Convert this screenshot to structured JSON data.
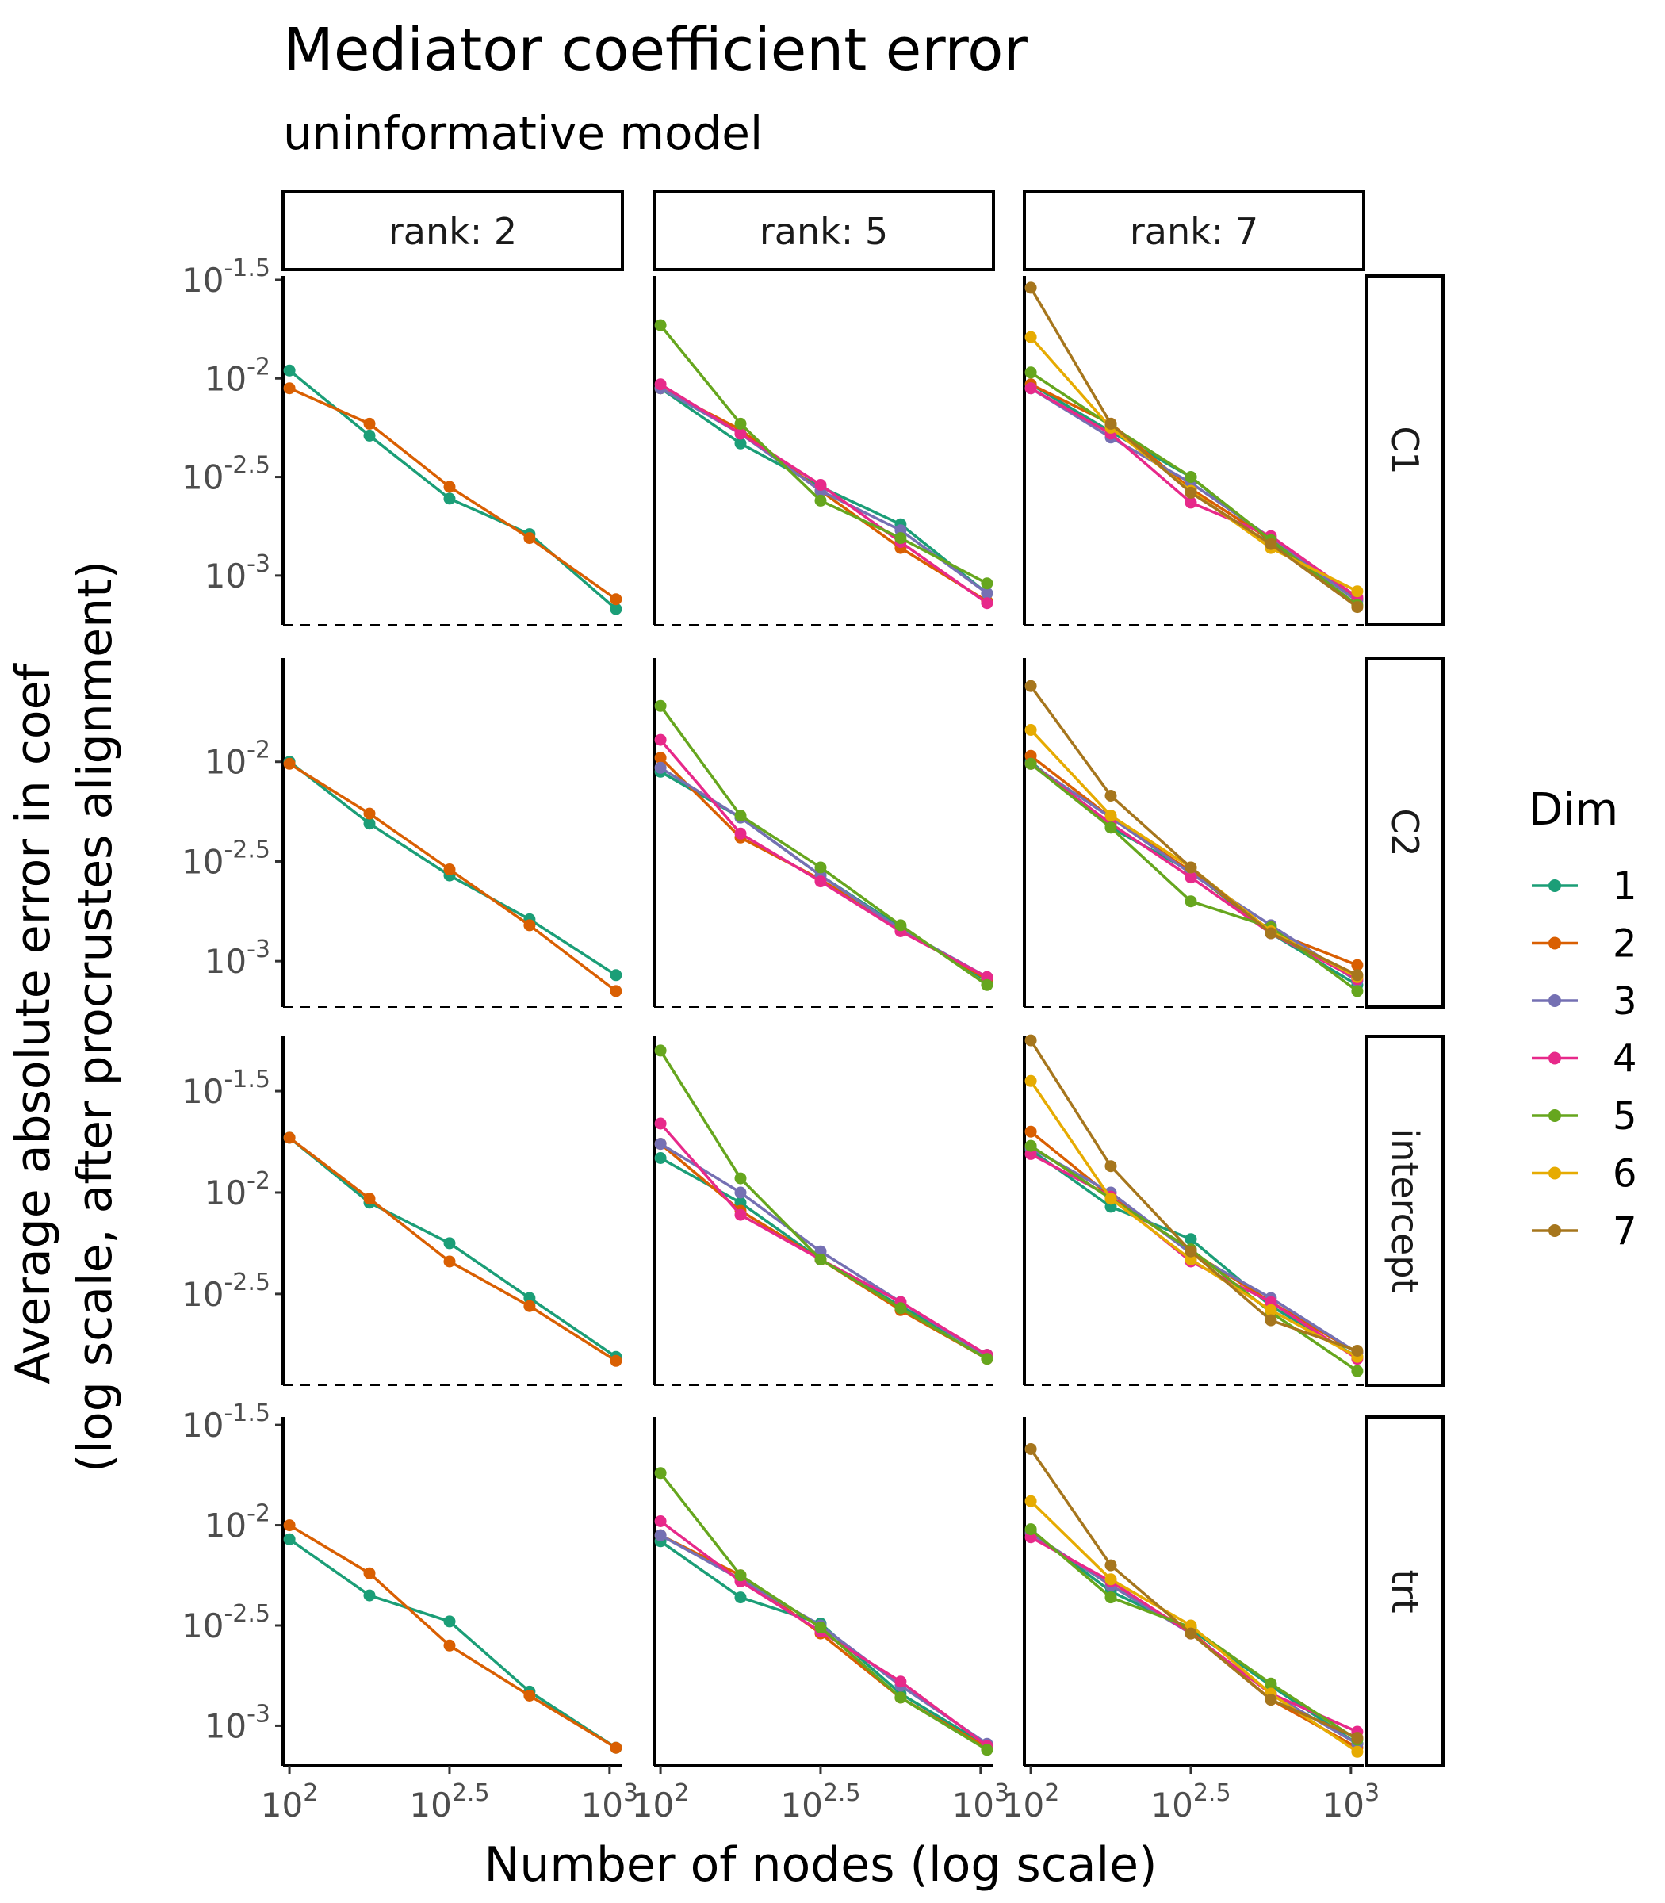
{
  "title": "Mediator coefficient error",
  "subtitle": "uninformative model",
  "xlabel": "Number of nodes (log scale)",
  "ylabel_line1": "Average absolute error in coef",
  "ylabel_line2": "(log scale, after procrustes alignment)",
  "legend": {
    "title": "Dim",
    "items": [
      {
        "label": "1",
        "color": "#1B9E77"
      },
      {
        "label": "2",
        "color": "#D95F02"
      },
      {
        "label": "3",
        "color": "#7570B3"
      },
      {
        "label": "4",
        "color": "#E7298A"
      },
      {
        "label": "5",
        "color": "#66A61E"
      },
      {
        "label": "6",
        "color": "#E6AB02"
      },
      {
        "label": "7",
        "color": "#A6761D"
      }
    ]
  },
  "chart_data": {
    "type": "line",
    "x_scale": "log10",
    "y_scale": "log10",
    "xlim_log10": [
      1.98,
      3.04
    ],
    "x_ticks": [
      {
        "v": 2,
        "base": "10",
        "exp": "2"
      },
      {
        "v": 2.5,
        "base": "10",
        "exp": "2.5"
      },
      {
        "v": 3,
        "base": "10",
        "exp": "3"
      }
    ],
    "x_log10": [
      2.0,
      2.25,
      2.5,
      2.75,
      3.02
    ],
    "columns": [
      {
        "label": "rank: 2",
        "rank": 2
      },
      {
        "label": "rank: 5",
        "rank": 5
      },
      {
        "label": "rank: 7",
        "rank": 7
      }
    ],
    "rows": [
      {
        "label": "C1",
        "ylim_log10": [
          -3.25,
          -1.48
        ],
        "y_ticks": [
          {
            "v": -1.5,
            "base": "10",
            "exp": "-1.5"
          },
          {
            "v": -2,
            "base": "10",
            "exp": "-2"
          },
          {
            "v": -2.5,
            "base": "10",
            "exp": "-2.5"
          },
          {
            "v": -3,
            "base": "10",
            "exp": "-3"
          }
        ],
        "panels": [
          [
            {
              "dim": 1,
              "y_log10": [
                -1.96,
                -2.29,
                -2.61,
                -2.79,
                -3.17
              ]
            },
            {
              "dim": 2,
              "y_log10": [
                -2.05,
                -2.23,
                -2.55,
                -2.81,
                -3.12
              ]
            }
          ],
          [
            {
              "dim": 1,
              "y_log10": [
                -2.05,
                -2.33,
                -2.55,
                -2.74,
                -3.09
              ]
            },
            {
              "dim": 2,
              "y_log10": [
                -2.05,
                -2.26,
                -2.57,
                -2.86,
                -3.13
              ]
            },
            {
              "dim": 3,
              "y_log10": [
                -2.05,
                -2.28,
                -2.57,
                -2.77,
                -3.09
              ]
            },
            {
              "dim": 4,
              "y_log10": [
                -2.03,
                -2.28,
                -2.54,
                -2.83,
                -3.14
              ]
            },
            {
              "dim": 5,
              "y_log10": [
                -1.73,
                -2.23,
                -2.62,
                -2.81,
                -3.04
              ]
            }
          ],
          [
            {
              "dim": 1,
              "y_log10": [
                -2.03,
                -2.27,
                -2.5,
                -2.83,
                -3.12
              ]
            },
            {
              "dim": 2,
              "y_log10": [
                -2.03,
                -2.23,
                -2.56,
                -2.82,
                -3.12
              ]
            },
            {
              "dim": 3,
              "y_log10": [
                -2.05,
                -2.3,
                -2.53,
                -2.81,
                -3.13
              ]
            },
            {
              "dim": 4,
              "y_log10": [
                -2.05,
                -2.28,
                -2.63,
                -2.8,
                -3.11
              ]
            },
            {
              "dim": 5,
              "y_log10": [
                -1.97,
                -2.24,
                -2.5,
                -2.82,
                -3.15
              ]
            },
            {
              "dim": 6,
              "y_log10": [
                -1.79,
                -2.25,
                -2.57,
                -2.86,
                -3.08
              ]
            },
            {
              "dim": 7,
              "y_log10": [
                -1.54,
                -2.23,
                -2.58,
                -2.84,
                -3.16
              ]
            }
          ]
        ]
      },
      {
        "label": "C2",
        "ylim_log10": [
          -3.23,
          -1.48
        ],
        "y_ticks": [
          {
            "v": -2,
            "base": "10",
            "exp": "-2"
          },
          {
            "v": -2.5,
            "base": "10",
            "exp": "-2.5"
          },
          {
            "v": -3,
            "base": "10",
            "exp": "-3"
          }
        ],
        "panels": [
          [
            {
              "dim": 1,
              "y_log10": [
                -2.0,
                -2.31,
                -2.57,
                -2.79,
                -3.07
              ]
            },
            {
              "dim": 2,
              "y_log10": [
                -2.01,
                -2.26,
                -2.54,
                -2.82,
                -3.15
              ]
            }
          ],
          [
            {
              "dim": 1,
              "y_log10": [
                -2.05,
                -2.28,
                -2.57,
                -2.83,
                -3.1
              ]
            },
            {
              "dim": 2,
              "y_log10": [
                -1.98,
                -2.38,
                -2.59,
                -2.84,
                -3.09
              ]
            },
            {
              "dim": 3,
              "y_log10": [
                -2.03,
                -2.28,
                -2.57,
                -2.84,
                -3.08
              ]
            },
            {
              "dim": 4,
              "y_log10": [
                -1.89,
                -2.36,
                -2.6,
                -2.85,
                -3.08
              ]
            },
            {
              "dim": 5,
              "y_log10": [
                -1.72,
                -2.27,
                -2.53,
                -2.82,
                -3.12
              ]
            }
          ],
          [
            {
              "dim": 1,
              "y_log10": [
                -2.0,
                -2.33,
                -2.55,
                -2.86,
                -3.12
              ]
            },
            {
              "dim": 2,
              "y_log10": [
                -1.97,
                -2.28,
                -2.55,
                -2.85,
                -3.02
              ]
            },
            {
              "dim": 3,
              "y_log10": [
                -2.01,
                -2.28,
                -2.56,
                -2.82,
                -3.1
              ]
            },
            {
              "dim": 4,
              "y_log10": [
                -2.01,
                -2.31,
                -2.58,
                -2.86,
                -3.09
              ]
            },
            {
              "dim": 5,
              "y_log10": [
                -2.01,
                -2.33,
                -2.7,
                -2.83,
                -3.15
              ]
            },
            {
              "dim": 6,
              "y_log10": [
                -1.84,
                -2.27,
                -2.53,
                -2.85,
                -3.08
              ]
            },
            {
              "dim": 7,
              "y_log10": [
                -1.62,
                -2.17,
                -2.53,
                -2.86,
                -3.07
              ]
            }
          ]
        ]
      },
      {
        "label": "intercept",
        "ylim_log10": [
          -2.95,
          -1.23
        ],
        "y_ticks": [
          {
            "v": -1.5,
            "base": "10",
            "exp": "-1.5"
          },
          {
            "v": -2,
            "base": "10",
            "exp": "-2"
          },
          {
            "v": -2.5,
            "base": "10",
            "exp": "-2.5"
          }
        ],
        "panels": [
          [
            {
              "dim": 1,
              "y_log10": [
                -1.73,
                -2.05,
                -2.25,
                -2.52,
                -2.81
              ]
            },
            {
              "dim": 2,
              "y_log10": [
                -1.73,
                -2.03,
                -2.34,
                -2.56,
                -2.83
              ]
            }
          ],
          [
            {
              "dim": 1,
              "y_log10": [
                -1.83,
                -2.05,
                -2.33,
                -2.56,
                -2.8
              ]
            },
            {
              "dim": 2,
              "y_log10": [
                -1.76,
                -2.09,
                -2.33,
                -2.58,
                -2.82
              ]
            },
            {
              "dim": 3,
              "y_log10": [
                -1.76,
                -2.0,
                -2.29,
                -2.54,
                -2.81
              ]
            },
            {
              "dim": 4,
              "y_log10": [
                -1.66,
                -2.11,
                -2.33,
                -2.54,
                -2.8
              ]
            },
            {
              "dim": 5,
              "y_log10": [
                -1.3,
                -1.93,
                -2.33,
                -2.57,
                -2.82
              ]
            }
          ],
          [
            {
              "dim": 1,
              "y_log10": [
                -1.79,
                -2.07,
                -2.23,
                -2.56,
                -2.81
              ]
            },
            {
              "dim": 2,
              "y_log10": [
                -1.7,
                -2.02,
                -2.29,
                -2.54,
                -2.79
              ]
            },
            {
              "dim": 3,
              "y_log10": [
                -1.78,
                -2.0,
                -2.3,
                -2.52,
                -2.79
              ]
            },
            {
              "dim": 4,
              "y_log10": [
                -1.81,
                -2.02,
                -2.34,
                -2.54,
                -2.82
              ]
            },
            {
              "dim": 5,
              "y_log10": [
                -1.77,
                -2.03,
                -2.28,
                -2.59,
                -2.88
              ]
            },
            {
              "dim": 6,
              "y_log10": [
                -1.45,
                -2.03,
                -2.33,
                -2.58,
                -2.81
              ]
            },
            {
              "dim": 7,
              "y_log10": [
                -1.25,
                -1.87,
                -2.29,
                -2.63,
                -2.78
              ]
            }
          ]
        ]
      },
      {
        "label": "trt",
        "ylim_log10": [
          -3.2,
          -1.46
        ],
        "y_ticks": [
          {
            "v": -1.5,
            "base": "10",
            "exp": "-1.5"
          },
          {
            "v": -2,
            "base": "10",
            "exp": "-2"
          },
          {
            "v": -2.5,
            "base": "10",
            "exp": "-2.5"
          },
          {
            "v": -3,
            "base": "10",
            "exp": "-3"
          }
        ],
        "panels": [
          [
            {
              "dim": 1,
              "y_log10": [
                -2.07,
                -2.35,
                -2.48,
                -2.83,
                -3.11
              ]
            },
            {
              "dim": 2,
              "y_log10": [
                -2.0,
                -2.24,
                -2.6,
                -2.85,
                -3.11
              ]
            }
          ],
          [
            {
              "dim": 1,
              "y_log10": [
                -2.08,
                -2.36,
                -2.49,
                -2.84,
                -3.1
              ]
            },
            {
              "dim": 2,
              "y_log10": [
                -2.05,
                -2.25,
                -2.54,
                -2.86,
                -3.11
              ]
            },
            {
              "dim": 3,
              "y_log10": [
                -2.05,
                -2.27,
                -2.5,
                -2.8,
                -3.09
              ]
            },
            {
              "dim": 4,
              "y_log10": [
                -1.98,
                -2.28,
                -2.53,
                -2.78,
                -3.1
              ]
            },
            {
              "dim": 5,
              "y_log10": [
                -1.74,
                -2.25,
                -2.51,
                -2.86,
                -3.12
              ]
            }
          ],
          [
            {
              "dim": 1,
              "y_log10": [
                -2.03,
                -2.33,
                -2.52,
                -2.8,
                -3.09
              ]
            },
            {
              "dim": 2,
              "y_log10": [
                -2.04,
                -2.3,
                -2.53,
                -2.87,
                -3.11
              ]
            },
            {
              "dim": 3,
              "y_log10": [
                -2.04,
                -2.3,
                -2.54,
                -2.84,
                -3.09
              ]
            },
            {
              "dim": 4,
              "y_log10": [
                -2.06,
                -2.28,
                -2.54,
                -2.84,
                -3.03
              ]
            },
            {
              "dim": 5,
              "y_log10": [
                -2.02,
                -2.36,
                -2.51,
                -2.79,
                -3.07
              ]
            },
            {
              "dim": 6,
              "y_log10": [
                -1.88,
                -2.27,
                -2.5,
                -2.84,
                -3.13
              ]
            },
            {
              "dim": 7,
              "y_log10": [
                -1.62,
                -2.2,
                -2.54,
                -2.87,
                -3.06
              ]
            }
          ]
        ]
      }
    ]
  }
}
